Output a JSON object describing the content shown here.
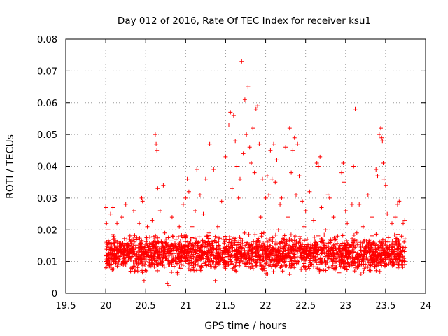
{
  "chart_data": {
    "type": "scatter",
    "title": "Day 012 of 2016, Rate Of TEC Index for receiver ksu1",
    "xlabel": "GPS time / hours",
    "ylabel": "ROTI / TECUs",
    "xlim": [
      19.5,
      24
    ],
    "ylim": [
      0,
      0.08
    ],
    "xticks": [
      19.5,
      20,
      20.5,
      21,
      21.5,
      22,
      22.5,
      23,
      23.5,
      24
    ],
    "xtick_labels": [
      "19.5",
      "20",
      "20.5",
      "21",
      "21.5",
      "22",
      "22.5",
      "23",
      "23.5",
      "24"
    ],
    "yticks": [
      0,
      0.01,
      0.02,
      0.03,
      0.04,
      0.05,
      0.06,
      0.07,
      0.08
    ],
    "ytick_labels": [
      "0",
      "0.01",
      "0.02",
      "0.03",
      "0.04",
      "0.05",
      "0.06",
      "0.07",
      "0.08"
    ],
    "grid": true,
    "marker": "+",
    "color": "#ff0000",
    "series": [
      {
        "name": "ROTI",
        "points": [
          [
            20.0,
            0.027
          ],
          [
            20.0,
            0.008
          ],
          [
            20.01,
            0.022
          ],
          [
            20.02,
            0.012
          ],
          [
            20.03,
            0.02
          ],
          [
            20.04,
            0.016
          ],
          [
            20.05,
            0.009
          ],
          [
            20.06,
            0.025
          ],
          [
            20.07,
            0.014
          ],
          [
            20.08,
            0.011
          ],
          [
            20.09,
            0.027
          ],
          [
            20.1,
            0.018
          ],
          [
            20.12,
            0.01
          ],
          [
            20.14,
            0.022
          ],
          [
            20.16,
            0.013
          ],
          [
            20.18,
            0.009
          ],
          [
            20.2,
            0.024
          ],
          [
            20.22,
            0.012
          ],
          [
            20.25,
            0.028
          ],
          [
            20.27,
            0.01
          ],
          [
            20.3,
            0.017
          ],
          [
            20.33,
            0.008
          ],
          [
            20.35,
            0.026
          ],
          [
            20.38,
            0.011
          ],
          [
            20.4,
            0.007
          ],
          [
            20.42,
            0.022
          ],
          [
            20.45,
            0.03
          ],
          [
            20.46,
            0.029
          ],
          [
            20.48,
            0.004
          ],
          [
            20.5,
            0.013
          ],
          [
            20.52,
            0.021
          ],
          [
            20.55,
            0.009
          ],
          [
            20.58,
            0.023
          ],
          [
            20.6,
            0.011
          ],
          [
            20.62,
            0.05
          ],
          [
            20.63,
            0.047
          ],
          [
            20.64,
            0.045
          ],
          [
            20.65,
            0.033
          ],
          [
            20.66,
            0.016
          ],
          [
            20.68,
            0.026
          ],
          [
            20.7,
            0.01
          ],
          [
            20.72,
            0.034
          ],
          [
            20.74,
            0.019
          ],
          [
            20.77,
            0.003
          ],
          [
            20.79,
            0.0025
          ],
          [
            20.8,
            0.013
          ],
          [
            20.83,
            0.024
          ],
          [
            20.85,
            0.011
          ],
          [
            20.88,
            0.017
          ],
          [
            20.9,
            0.006
          ],
          [
            20.92,
            0.021
          ],
          [
            20.95,
            0.012
          ],
          [
            20.97,
            0.028
          ],
          [
            21.0,
            0.03
          ],
          [
            21.02,
            0.036
          ],
          [
            21.04,
            0.032
          ],
          [
            21.06,
            0.014
          ],
          [
            21.08,
            0.021
          ],
          [
            21.1,
            0.009
          ],
          [
            21.12,
            0.026
          ],
          [
            21.14,
            0.039
          ],
          [
            21.16,
            0.016
          ],
          [
            21.18,
            0.031
          ],
          [
            21.2,
            0.011
          ],
          [
            21.22,
            0.025
          ],
          [
            21.25,
            0.036
          ],
          [
            21.27,
            0.018
          ],
          [
            21.3,
            0.047
          ],
          [
            21.32,
            0.013
          ],
          [
            21.35,
            0.039
          ],
          [
            21.37,
            0.004
          ],
          [
            21.4,
            0.021
          ],
          [
            21.42,
            0.012
          ],
          [
            21.45,
            0.029
          ],
          [
            21.47,
            0.017
          ],
          [
            21.5,
            0.043
          ],
          [
            21.52,
            0.01
          ],
          [
            21.54,
            0.053
          ],
          [
            21.56,
            0.057
          ],
          [
            21.58,
            0.033
          ],
          [
            21.6,
            0.056
          ],
          [
            21.62,
            0.048
          ],
          [
            21.64,
            0.04
          ],
          [
            21.66,
            0.03
          ],
          [
            21.68,
            0.036
          ],
          [
            21.7,
            0.073
          ],
          [
            21.72,
            0.044
          ],
          [
            21.74,
            0.061
          ],
          [
            21.76,
            0.05
          ],
          [
            21.78,
            0.065
          ],
          [
            21.8,
            0.046
          ],
          [
            21.82,
            0.041
          ],
          [
            21.84,
            0.052
          ],
          [
            21.86,
            0.038
          ],
          [
            21.88,
            0.058
          ],
          [
            21.9,
            0.059
          ],
          [
            21.92,
            0.047
          ],
          [
            21.94,
            0.024
          ],
          [
            21.96,
            0.036
          ],
          [
            21.98,
            0.015
          ],
          [
            22.0,
            0.03
          ],
          [
            22.02,
            0.037
          ],
          [
            22.04,
            0.031
          ],
          [
            22.06,
            0.045
          ],
          [
            22.08,
            0.036
          ],
          [
            22.1,
            0.047
          ],
          [
            22.12,
            0.035
          ],
          [
            22.14,
            0.042
          ],
          [
            22.16,
            0.02
          ],
          [
            22.18,
            0.028
          ],
          [
            22.2,
            0.03
          ],
          [
            22.22,
            0.012
          ],
          [
            22.25,
            0.046
          ],
          [
            22.28,
            0.024
          ],
          [
            22.3,
            0.052
          ],
          [
            22.32,
            0.038
          ],
          [
            22.34,
            0.045
          ],
          [
            22.36,
            0.049
          ],
          [
            22.38,
            0.031
          ],
          [
            22.4,
            0.047
          ],
          [
            22.42,
            0.037
          ],
          [
            22.44,
            0.014
          ],
          [
            22.46,
            0.029
          ],
          [
            22.48,
            0.021
          ],
          [
            22.5,
            0.026
          ],
          [
            22.52,
            0.017
          ],
          [
            22.55,
            0.032
          ],
          [
            22.57,
            0.009
          ],
          [
            22.6,
            0.023
          ],
          [
            22.62,
            0.016
          ],
          [
            22.64,
            0.041
          ],
          [
            22.66,
            0.04
          ],
          [
            22.68,
            0.043
          ],
          [
            22.7,
            0.027
          ],
          [
            22.72,
            0.013
          ],
          [
            22.75,
            0.02
          ],
          [
            22.78,
            0.031
          ],
          [
            22.8,
            0.03
          ],
          [
            22.82,
            0.012
          ],
          [
            22.85,
            0.024
          ],
          [
            22.88,
            0.01
          ],
          [
            22.9,
            0.018
          ],
          [
            22.93,
            0.015
          ],
          [
            22.95,
            0.038
          ],
          [
            22.97,
            0.041
          ],
          [
            22.98,
            0.035
          ],
          [
            23.0,
            0.026
          ],
          [
            23.02,
            0.022
          ],
          [
            23.05,
            0.012
          ],
          [
            23.08,
            0.028
          ],
          [
            23.1,
            0.04
          ],
          [
            23.12,
            0.058
          ],
          [
            23.14,
            0.019
          ],
          [
            23.17,
            0.028
          ],
          [
            23.2,
            0.01
          ],
          [
            23.22,
            0.021
          ],
          [
            23.25,
            0.013
          ],
          [
            23.28,
            0.031
          ],
          [
            23.3,
            0.016
          ],
          [
            23.33,
            0.024
          ],
          [
            23.36,
            0.01
          ],
          [
            23.38,
            0.039
          ],
          [
            23.4,
            0.037
          ],
          [
            23.42,
            0.05
          ],
          [
            23.44,
            0.052
          ],
          [
            23.45,
            0.049
          ],
          [
            23.46,
            0.048
          ],
          [
            23.47,
            0.041
          ],
          [
            23.48,
            0.036
          ],
          [
            23.5,
            0.034
          ],
          [
            23.52,
            0.025
          ],
          [
            23.55,
            0.015
          ],
          [
            23.58,
            0.022
          ],
          [
            23.6,
            0.009
          ],
          [
            23.62,
            0.024
          ],
          [
            23.65,
            0.028
          ],
          [
            23.67,
            0.029
          ],
          [
            23.7,
            0.018
          ],
          [
            23.72,
            0.022
          ],
          [
            23.73,
            0.011
          ],
          [
            23.74,
            0.023
          ]
        ]
      }
    ],
    "background_band": {
      "x_range": [
        20.0,
        23.75
      ],
      "y_range": [
        0.005,
        0.02
      ],
      "count": 2200
    }
  }
}
